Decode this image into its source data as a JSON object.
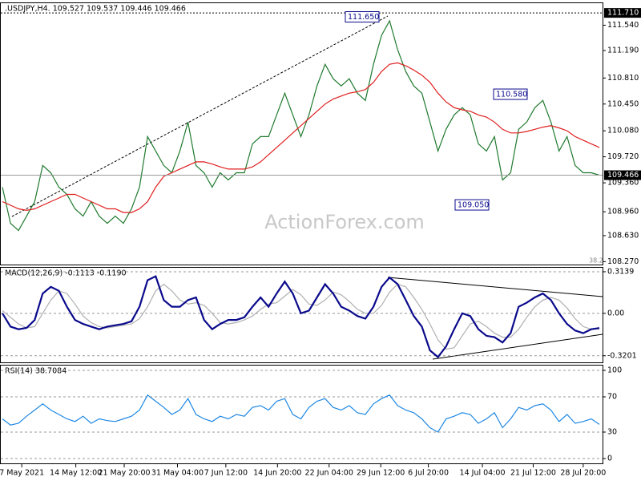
{
  "chart_data": [
    {
      "type": "line",
      "title": ".USDJPY,H4. 109.527 109.537 109.446 109.466",
      "watermark": "ActionForex.com",
      "note": "38.2",
      "xlim": [
        0,
        74
      ],
      "ylim": [
        108.23,
        111.8
      ],
      "yticks": [
        {
          "value": 111.54,
          "label": "111.540"
        },
        {
          "value": 111.19,
          "label": "111.190"
        },
        {
          "value": 110.81,
          "label": "110.810"
        },
        {
          "value": 110.45,
          "label": "110.450"
        },
        {
          "value": 110.08,
          "label": "110.080"
        },
        {
          "value": 109.72,
          "label": "109.720"
        },
        {
          "value": 109.36,
          "label": "109.360"
        },
        {
          "value": 108.96,
          "label": "108.960"
        },
        {
          "value": 108.63,
          "label": "108.630"
        },
        {
          "value": 108.27,
          "label": "108.270"
        }
      ],
      "level_lines": [
        {
          "value": 111.71,
          "label": "111.710"
        }
      ],
      "last_price": 109.466,
      "annotations": [
        {
          "value": 111.65,
          "label": "111.650"
        },
        {
          "value": 110.58,
          "label": "110.580"
        },
        {
          "value": 109.05,
          "label": "109.050"
        }
      ],
      "series": [
        {
          "color": "#1f7a2e",
          "values": [
            109.3,
            108.8,
            108.7,
            108.9,
            109.1,
            109.6,
            109.5,
            109.3,
            109.2,
            109.0,
            108.9,
            109.1,
            108.9,
            108.8,
            108.9,
            108.8,
            109.0,
            109.3,
            110.0,
            109.8,
            109.6,
            109.5,
            109.8,
            110.2,
            109.6,
            109.5,
            109.3,
            109.5,
            109.4,
            109.5,
            109.5,
            109.9,
            110.0,
            110.0,
            110.3,
            110.6,
            110.3,
            110.0,
            110.3,
            110.7,
            111.0,
            110.8,
            110.7,
            110.8,
            110.6,
            110.5,
            111.0,
            111.4,
            111.6,
            111.2,
            110.9,
            110.7,
            110.6,
            110.2,
            109.8,
            110.1,
            110.3,
            110.4,
            110.3,
            109.9,
            109.8,
            110.0,
            109.4,
            109.5,
            110.1,
            110.2,
            110.4,
            110.5,
            110.2,
            109.8,
            110.0,
            109.6,
            109.5,
            109.5,
            109.466
          ]
        },
        {
          "color": "#e01e1e",
          "values": [
            109.1,
            109.05,
            109.0,
            108.98,
            109.0,
            109.05,
            109.1,
            109.15,
            109.2,
            109.2,
            109.15,
            109.1,
            109.05,
            109.0,
            109.0,
            108.95,
            108.95,
            109.0,
            109.1,
            109.3,
            109.45,
            109.5,
            109.55,
            109.6,
            109.65,
            109.65,
            109.62,
            109.58,
            109.55,
            109.55,
            109.55,
            109.58,
            109.65,
            109.75,
            109.85,
            109.95,
            110.05,
            110.15,
            110.25,
            110.35,
            110.45,
            110.52,
            110.56,
            110.6,
            110.62,
            110.65,
            110.75,
            110.9,
            111.0,
            111.02,
            110.98,
            110.92,
            110.85,
            110.75,
            110.6,
            110.48,
            110.4,
            110.37,
            110.35,
            110.3,
            110.27,
            110.2,
            110.1,
            110.05,
            110.05,
            110.07,
            110.1,
            110.13,
            110.15,
            110.12,
            110.08,
            110.0,
            109.95,
            109.9,
            109.85
          ]
        }
      ]
    },
    {
      "type": "line",
      "title": "MACD(12,26,9) -0.1113 -0.1190",
      "xlim": [
        0,
        74
      ],
      "ylim": [
        -0.37,
        0.35
      ],
      "grid": true,
      "yticks": [
        0.3139,
        {
          "value": 0,
          "label": "0.00"
        },
        -0.3201
      ],
      "series": [
        {
          "color": "#b0b0b0",
          "values": [
            0.02,
            -0.03,
            -0.08,
            -0.11,
            -0.1,
            0.0,
            0.1,
            0.17,
            0.15,
            0.07,
            -0.02,
            -0.07,
            -0.1,
            -0.11,
            -0.1,
            -0.09,
            -0.08,
            -0.04,
            0.05,
            0.17,
            0.22,
            0.17,
            0.1,
            0.07,
            0.08,
            0.06,
            0.0,
            -0.07,
            -0.08,
            -0.07,
            -0.05,
            -0.02,
            0.03,
            0.07,
            0.08,
            0.13,
            0.18,
            0.14,
            0.07,
            0.06,
            0.1,
            0.16,
            0.14,
            0.09,
            0.03,
            0.0,
            0.0,
            0.06,
            0.16,
            0.22,
            0.2,
            0.12,
            0.03,
            -0.08,
            -0.2,
            -0.27,
            -0.26,
            -0.17,
            -0.08,
            -0.06,
            -0.1,
            -0.15,
            -0.18,
            -0.18,
            -0.12,
            -0.03,
            0.05,
            0.1,
            0.12,
            0.1,
            0.04,
            -0.04,
            -0.1,
            -0.12,
            -0.119
          ]
        },
        {
          "color": "#0a0a8c",
          "values": [
            0.0,
            -0.1,
            -0.12,
            -0.11,
            -0.05,
            0.15,
            0.2,
            0.17,
            0.05,
            -0.05,
            -0.08,
            -0.1,
            -0.12,
            -0.1,
            -0.09,
            -0.08,
            -0.06,
            0.05,
            0.25,
            0.28,
            0.1,
            0.05,
            0.05,
            0.1,
            0.12,
            -0.05,
            -0.12,
            -0.08,
            -0.05,
            -0.05,
            -0.03,
            0.05,
            0.12,
            0.05,
            0.15,
            0.24,
            0.15,
            0.0,
            0.02,
            0.12,
            0.22,
            0.15,
            0.05,
            0.02,
            -0.02,
            -0.04,
            0.05,
            0.2,
            0.27,
            0.22,
            0.1,
            -0.02,
            -0.1,
            -0.28,
            -0.33,
            -0.25,
            -0.12,
            0.0,
            -0.02,
            -0.12,
            -0.17,
            -0.18,
            -0.22,
            -0.15,
            0.05,
            0.08,
            0.12,
            0.15,
            0.1,
            0.0,
            -0.08,
            -0.13,
            -0.15,
            -0.12,
            -0.1113
          ]
        }
      ]
    },
    {
      "type": "line",
      "title": "RSI(14) 38.7084",
      "xlim": [
        0,
        74
      ],
      "ylim": [
        -5.5,
        106.4
      ],
      "grid": true,
      "yticks": [
        100,
        70,
        30,
        0
      ],
      "xticks": [
        {
          "value": 2.4,
          "label": "7 May 2021"
        },
        {
          "value": 9.1,
          "label": "14 May 12:00"
        },
        {
          "value": 15.1,
          "label": "21 May 20:00"
        },
        {
          "value": 21.7,
          "label": "31 May 04:00"
        },
        {
          "value": 27.7,
          "label": "7 Jun 12:00"
        },
        {
          "value": 34.1,
          "label": "14 Jun 20:00"
        },
        {
          "value": 40.5,
          "label": "22 Jun 04:00"
        },
        {
          "value": 46.9,
          "label": "29 Jun 12:00"
        },
        {
          "value": 52.8,
          "label": "6 Jul 20:00"
        },
        {
          "value": 59.5,
          "label": "14 Jul 04:00"
        },
        {
          "value": 65.8,
          "label": "21 Jul 12:00"
        },
        {
          "value": 72,
          "label": "28 Jul 20:00"
        }
      ],
      "series": [
        {
          "color": "#1e88e5",
          "values": [
            45,
            38,
            40,
            48,
            55,
            62,
            55,
            50,
            45,
            42,
            48,
            40,
            45,
            43,
            42,
            45,
            48,
            55,
            72,
            65,
            58,
            50,
            55,
            68,
            50,
            45,
            42,
            48,
            45,
            50,
            48,
            58,
            60,
            55,
            65,
            68,
            50,
            45,
            58,
            65,
            68,
            58,
            55,
            60,
            52,
            50,
            62,
            68,
            72,
            60,
            55,
            52,
            45,
            35,
            30,
            45,
            48,
            52,
            50,
            40,
            45,
            52,
            35,
            45,
            58,
            55,
            60,
            62,
            55,
            42,
            50,
            40,
            42,
            45,
            38.7084
          ]
        }
      ]
    }
  ]
}
